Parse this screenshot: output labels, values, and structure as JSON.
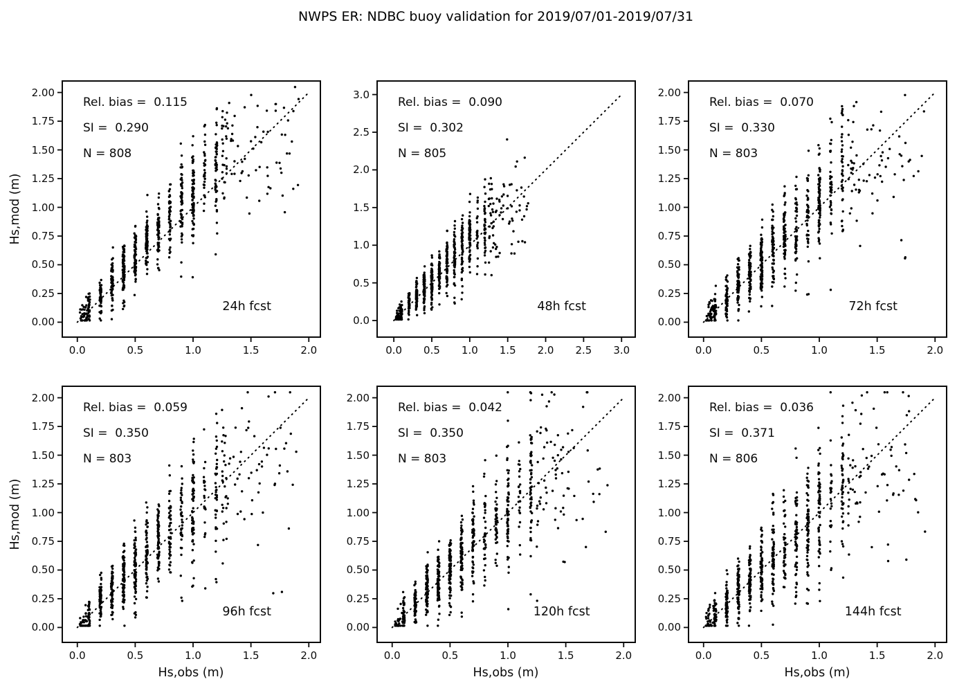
{
  "figure": {
    "title": "NWPS ER: NDBC buoy validation for 2019/07/01-2019/07/31",
    "background_color": "#ffffff",
    "point_color": "#000000",
    "line_color": "#000000"
  },
  "axis_labels": {
    "x": "Hs,obs (m)",
    "y": "Hs,mod (m)"
  },
  "chart_data": [
    {
      "type": "scatter",
      "label": "24h fcst",
      "stats": {
        "rel_bias": 0.115,
        "si": 0.29,
        "n": 808
      },
      "stats_lines": [
        "Rel. bias =  0.115",
        "SI =  0.290",
        "N = 808"
      ],
      "xlabel": "Hs,obs (m)",
      "ylabel": "Hs,mod (m)",
      "axis_max": 2.0,
      "xlim": [
        -0.13,
        2.1
      ],
      "ylim": [
        -0.13,
        2.1
      ],
      "x_tick_values": [
        0.0,
        0.5,
        1.0,
        1.5,
        2.0
      ],
      "x_tick_labels": [
        "0.0",
        "0.5",
        "1.0",
        "1.5",
        "2.0"
      ],
      "y_tick_values": [
        0.0,
        0.25,
        0.5,
        0.75,
        1.0,
        1.25,
        1.5,
        1.75,
        2.0
      ],
      "y_tick_labels": [
        "0.00",
        "0.25",
        "0.50",
        "0.75",
        "1.00",
        "1.25",
        "1.50",
        "1.75",
        "2.00"
      ],
      "grid": false,
      "legend": false,
      "diagonal_line": "1:1 dotted from (0,0) to (2,2)",
      "sim": {
        "seed": 24,
        "x_data_max": 1.97
      }
    },
    {
      "type": "scatter",
      "label": "48h fcst",
      "stats": {
        "rel_bias": 0.09,
        "si": 0.302,
        "n": 805
      },
      "stats_lines": [
        "Rel. bias =  0.090",
        "SI =  0.302",
        "N = 805"
      ],
      "xlabel": "Hs,obs (m)",
      "ylabel": "Hs,mod (m)",
      "axis_max": 3.0,
      "xlim": [
        -0.22,
        3.18
      ],
      "ylim": [
        -0.22,
        3.18
      ],
      "x_tick_values": [
        0.0,
        0.5,
        1.0,
        1.5,
        2.0,
        2.5,
        3.0
      ],
      "x_tick_labels": [
        "0.0",
        "0.5",
        "1.0",
        "1.5",
        "2.0",
        "2.5",
        "3.0"
      ],
      "y_tick_values": [
        0.0,
        0.5,
        1.0,
        1.5,
        2.0,
        2.5,
        3.0
      ],
      "y_tick_labels": [
        "0.0",
        "0.5",
        "1.0",
        "1.5",
        "2.0",
        "2.5",
        "3.0"
      ],
      "grid": false,
      "legend": false,
      "diagonal_line": "1:1 dotted from (0,0) to (3,3)",
      "sim": {
        "seed": 48,
        "x_data_max": 1.8
      }
    },
    {
      "type": "scatter",
      "label": "72h fcst",
      "stats": {
        "rel_bias": 0.07,
        "si": 0.33,
        "n": 803
      },
      "stats_lines": [
        "Rel. bias =  0.070",
        "SI =  0.330",
        "N = 803"
      ],
      "xlabel": "Hs,obs (m)",
      "ylabel": "Hs,mod (m)",
      "axis_max": 2.0,
      "xlim": [
        -0.13,
        2.1
      ],
      "ylim": [
        -0.13,
        2.1
      ],
      "x_tick_values": [
        0.0,
        0.5,
        1.0,
        1.5,
        2.0
      ],
      "x_tick_labels": [
        "0.0",
        "0.5",
        "1.0",
        "1.5",
        "2.0"
      ],
      "y_tick_values": [
        0.0,
        0.25,
        0.5,
        0.75,
        1.0,
        1.25,
        1.5,
        1.75,
        2.0
      ],
      "y_tick_labels": [
        "0.00",
        "0.25",
        "0.50",
        "0.75",
        "1.00",
        "1.25",
        "1.50",
        "1.75",
        "2.00"
      ],
      "grid": false,
      "legend": false,
      "diagonal_line": "1:1 dotted from (0,0) to (2,2)",
      "sim": {
        "seed": 72,
        "x_data_max": 1.95
      }
    },
    {
      "type": "scatter",
      "label": "96h fcst",
      "stats": {
        "rel_bias": 0.059,
        "si": 0.35,
        "n": 803
      },
      "stats_lines": [
        "Rel. bias =  0.059",
        "SI =  0.350",
        "N = 803"
      ],
      "xlabel": "Hs,obs (m)",
      "ylabel": "Hs,mod (m)",
      "axis_max": 2.0,
      "xlim": [
        -0.13,
        2.1
      ],
      "ylim": [
        -0.13,
        2.1
      ],
      "x_tick_values": [
        0.0,
        0.5,
        1.0,
        1.5,
        2.0
      ],
      "x_tick_labels": [
        "0.0",
        "0.5",
        "1.0",
        "1.5",
        "2.0"
      ],
      "y_tick_values": [
        0.0,
        0.25,
        0.5,
        0.75,
        1.0,
        1.25,
        1.5,
        1.75,
        2.0
      ],
      "y_tick_labels": [
        "0.00",
        "0.25",
        "0.50",
        "0.75",
        "1.00",
        "1.25",
        "1.50",
        "1.75",
        "2.00"
      ],
      "grid": false,
      "legend": false,
      "diagonal_line": "1:1 dotted from (0,0) to (2,2)",
      "sim": {
        "seed": 96,
        "x_data_max": 1.97
      }
    },
    {
      "type": "scatter",
      "label": "120h fcst",
      "stats": {
        "rel_bias": 0.042,
        "si": 0.35,
        "n": 803
      },
      "stats_lines": [
        "Rel. bias =  0.042",
        "SI =  0.350",
        "N = 803"
      ],
      "xlabel": "Hs,obs (m)",
      "ylabel": "Hs,mod (m)",
      "axis_max": 2.0,
      "xlim": [
        -0.13,
        2.1
      ],
      "ylim": [
        -0.13,
        2.1
      ],
      "x_tick_values": [
        0.0,
        0.5,
        1.0,
        1.5,
        2.0
      ],
      "x_tick_labels": [
        "0.0",
        "0.5",
        "1.0",
        "1.5",
        "2.0"
      ],
      "y_tick_values": [
        0.0,
        0.25,
        0.5,
        0.75,
        1.0,
        1.25,
        1.5,
        1.75,
        2.0
      ],
      "y_tick_labels": [
        "0.00",
        "0.25",
        "0.50",
        "0.75",
        "1.00",
        "1.25",
        "1.50",
        "1.75",
        "2.00"
      ],
      "grid": false,
      "legend": false,
      "diagonal_line": "1:1 dotted from (0,0) to (2,2)",
      "sim": {
        "seed": 120,
        "x_data_max": 1.9
      }
    },
    {
      "type": "scatter",
      "label": "144h fcst",
      "stats": {
        "rel_bias": 0.036,
        "si": 0.371,
        "n": 806
      },
      "stats_lines": [
        "Rel. bias =  0.036",
        "SI =  0.371",
        "N = 806"
      ],
      "xlabel": "Hs,obs (m)",
      "ylabel": "Hs,mod (m)",
      "axis_max": 2.0,
      "xlim": [
        -0.13,
        2.1
      ],
      "ylim": [
        -0.13,
        2.1
      ],
      "x_tick_values": [
        0.0,
        0.5,
        1.0,
        1.5,
        2.0
      ],
      "x_tick_labels": [
        "0.0",
        "0.5",
        "1.0",
        "1.5",
        "2.0"
      ],
      "y_tick_values": [
        0.0,
        0.25,
        0.5,
        0.75,
        1.0,
        1.25,
        1.5,
        1.75,
        2.0
      ],
      "y_tick_labels": [
        "0.00",
        "0.25",
        "0.50",
        "0.75",
        "1.00",
        "1.25",
        "1.50",
        "1.75",
        "2.00"
      ],
      "grid": false,
      "legend": false,
      "diagonal_line": "1:1 dotted from (0,0) to (2,2)",
      "sim": {
        "seed": 144,
        "x_data_max": 1.95
      }
    }
  ]
}
